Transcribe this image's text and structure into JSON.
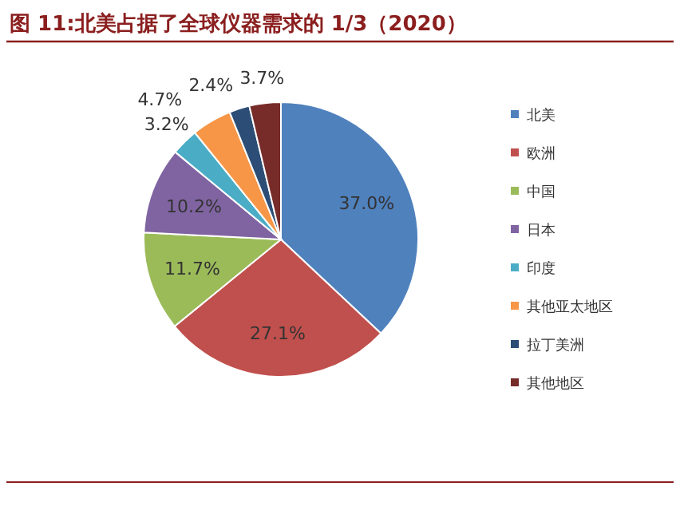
{
  "chart_data": {
    "type": "pie",
    "title": "图 11:北美占据了全球仪器需求的 1/3（2020）",
    "categories": [
      "北美",
      "欧洲",
      "中国",
      "日本",
      "印度",
      "其他亚太地区",
      "拉丁美洲",
      "其他地区"
    ],
    "values": [
      37.0,
      27.1,
      11.7,
      10.2,
      3.2,
      4.7,
      2.4,
      3.7
    ],
    "colors": [
      "#4f81bd",
      "#c0504d",
      "#9bbb59",
      "#8064a2",
      "#4bacc6",
      "#f79646",
      "#2c4d75",
      "#772c2a"
    ],
    "value_labels": [
      "37.0%",
      "27.1%",
      "11.7%",
      "10.2%",
      "3.2%",
      "4.7%",
      "2.4%",
      "3.7%"
    ],
    "legend": "right"
  }
}
